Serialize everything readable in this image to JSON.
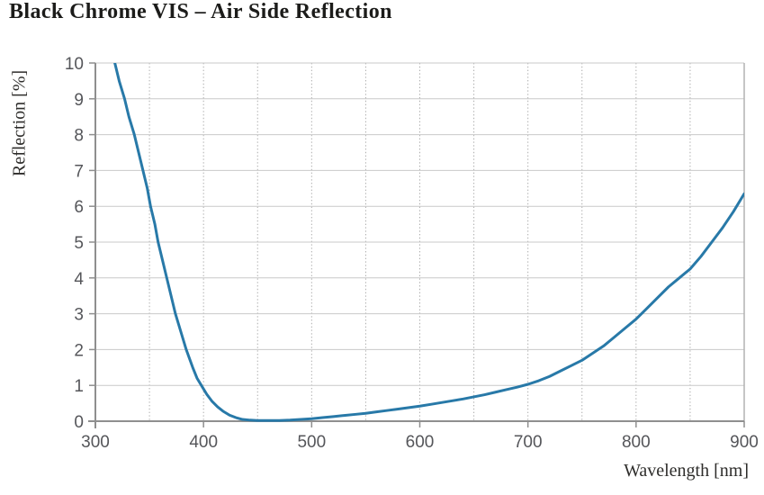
{
  "chart": {
    "title": "Black Chrome VIS – Air Side Reflection",
    "xlabel": "Wavelength [nm]",
    "ylabel": "Reflection [%]"
  },
  "chart_data": {
    "type": "line",
    "title": "Black Chrome VIS – Air Side Reflection",
    "xlabel": "Wavelength [nm]",
    "ylabel": "Reflection [%]",
    "xlim": [
      300,
      900
    ],
    "ylim": [
      0,
      10
    ],
    "xticks": [
      300,
      400,
      500,
      600,
      700,
      800,
      900
    ],
    "yticks": [
      0,
      1,
      2,
      3,
      4,
      5,
      6,
      7,
      8,
      9,
      10
    ],
    "xticks_minor_step": 50,
    "grid": {
      "horizontal": "solid",
      "vertical": "dotted-minor-50nm"
    },
    "legend": "none",
    "colors": {
      "line": "#2879a8",
      "grid_major": "#c9c9c9",
      "grid_minor": "#acacac",
      "axis": "#8f8f8f",
      "border": "#b2b2b2",
      "tick_label": "#55565a",
      "title": "#1c1c1a",
      "axis_label": "#2e2d2b"
    },
    "series": [
      {
        "name": "Air side reflection",
        "points": [
          [
            318,
            10.0
          ],
          [
            322,
            9.5
          ],
          [
            327,
            9.0
          ],
          [
            331,
            8.5
          ],
          [
            336,
            8.0
          ],
          [
            340,
            7.5
          ],
          [
            344,
            7.0
          ],
          [
            348,
            6.5
          ],
          [
            351,
            6.0
          ],
          [
            355,
            5.5
          ],
          [
            358,
            5.0
          ],
          [
            362,
            4.5
          ],
          [
            366,
            4.0
          ],
          [
            370,
            3.5
          ],
          [
            374,
            3.0
          ],
          [
            379,
            2.5
          ],
          [
            384,
            2.0
          ],
          [
            390,
            1.5
          ],
          [
            394,
            1.2
          ],
          [
            398,
            1.0
          ],
          [
            403,
            0.75
          ],
          [
            408,
            0.55
          ],
          [
            413,
            0.4
          ],
          [
            418,
            0.28
          ],
          [
            424,
            0.17
          ],
          [
            430,
            0.1
          ],
          [
            436,
            0.05
          ],
          [
            443,
            0.03
          ],
          [
            450,
            0.02
          ],
          [
            460,
            0.02
          ],
          [
            470,
            0.02
          ],
          [
            480,
            0.03
          ],
          [
            490,
            0.05
          ],
          [
            500,
            0.07
          ],
          [
            510,
            0.1
          ],
          [
            520,
            0.13
          ],
          [
            530,
            0.16
          ],
          [
            540,
            0.19
          ],
          [
            550,
            0.22
          ],
          [
            560,
            0.26
          ],
          [
            570,
            0.3
          ],
          [
            580,
            0.34
          ],
          [
            590,
            0.38
          ],
          [
            600,
            0.42
          ],
          [
            610,
            0.47
          ],
          [
            620,
            0.52
          ],
          [
            630,
            0.57
          ],
          [
            640,
            0.62
          ],
          [
            650,
            0.68
          ],
          [
            660,
            0.74
          ],
          [
            670,
            0.81
          ],
          [
            680,
            0.88
          ],
          [
            690,
            0.95
          ],
          [
            700,
            1.03
          ],
          [
            710,
            1.13
          ],
          [
            720,
            1.25
          ],
          [
            730,
            1.4
          ],
          [
            740,
            1.55
          ],
          [
            750,
            1.7
          ],
          [
            760,
            1.9
          ],
          [
            770,
            2.1
          ],
          [
            780,
            2.35
          ],
          [
            790,
            2.6
          ],
          [
            800,
            2.85
          ],
          [
            810,
            3.15
          ],
          [
            820,
            3.45
          ],
          [
            830,
            3.75
          ],
          [
            840,
            4.0
          ],
          [
            850,
            4.25
          ],
          [
            860,
            4.6
          ],
          [
            870,
            5.0
          ],
          [
            880,
            5.4
          ],
          [
            890,
            5.85
          ],
          [
            900,
            6.35
          ]
        ]
      }
    ]
  }
}
